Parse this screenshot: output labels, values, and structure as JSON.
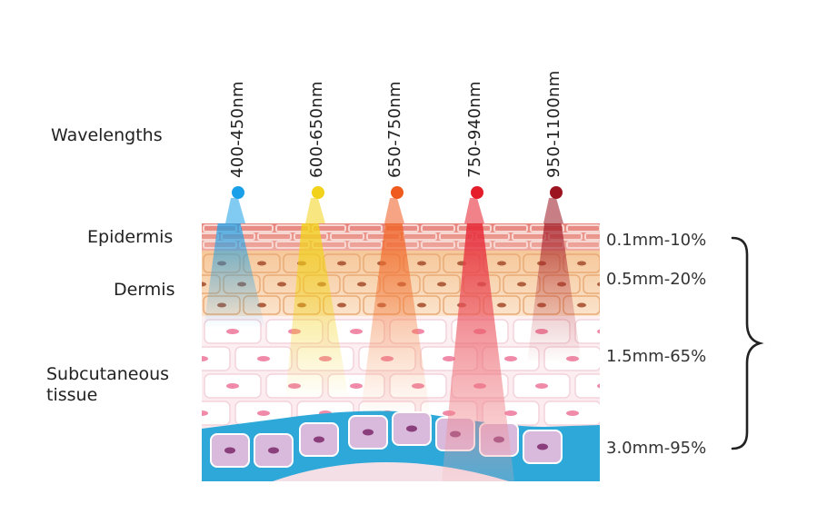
{
  "header": {
    "title": "Wavelengths"
  },
  "layers": [
    {
      "name": "Epidermis"
    },
    {
      "name": "Dermis"
    },
    {
      "name": "Subcutaneous",
      "name2": "tissue"
    }
  ],
  "wavelengths": [
    {
      "label": "400-450nm",
      "color": "#1aa0e8"
    },
    {
      "label": "600-650nm",
      "color": "#f2d21a"
    },
    {
      "label": "650-750nm",
      "color": "#ef5a1e"
    },
    {
      "label": "750-940nm",
      "color": "#e51c2a"
    },
    {
      "label": "950-1100nm",
      "color": "#9b1420"
    }
  ],
  "depths": [
    {
      "label": "0.1mm-10%"
    },
    {
      "label": "0.5mm-20%"
    },
    {
      "label": "1.5mm-65%"
    },
    {
      "label": "3.0mm-95%"
    }
  ]
}
